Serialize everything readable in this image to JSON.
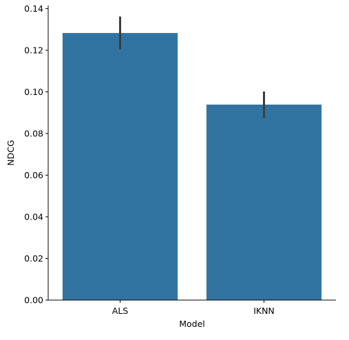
{
  "chart_data": {
    "type": "bar",
    "xlabel": "Model",
    "ylabel": "NDCG",
    "categories": [
      "ALS",
      "IKNN"
    ],
    "values": [
      0.1283,
      0.0939
    ],
    "error_bars": [
      {
        "low": 0.1205,
        "high": 0.1362
      },
      {
        "low": 0.0875,
        "high": 0.1002
      }
    ],
    "ylim": [
      0,
      0.1415
    ],
    "yticks": [
      "0.00",
      "0.02",
      "0.04",
      "0.06",
      "0.08",
      "0.10",
      "0.12",
      "0.14"
    ],
    "grid": false,
    "bar_color": "#3274a1",
    "errorbar_color": "#3d3d3d"
  }
}
